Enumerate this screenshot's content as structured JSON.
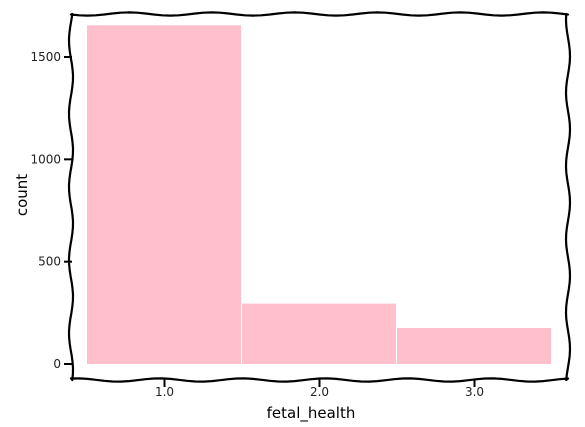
{
  "chart_data": {
    "type": "bar",
    "categories": [
      "1.0",
      "2.0",
      "3.0"
    ],
    "values": [
      1655,
      295,
      176
    ],
    "title": "",
    "xlabel": "fetal_health",
    "ylabel": "count",
    "ylim": [
      0,
      1730
    ],
    "yticks": [
      0,
      500,
      1000,
      1500
    ],
    "grid": false,
    "bar_color": "#ffc0cb",
    "frame_style": "hand-drawn wavy border"
  }
}
